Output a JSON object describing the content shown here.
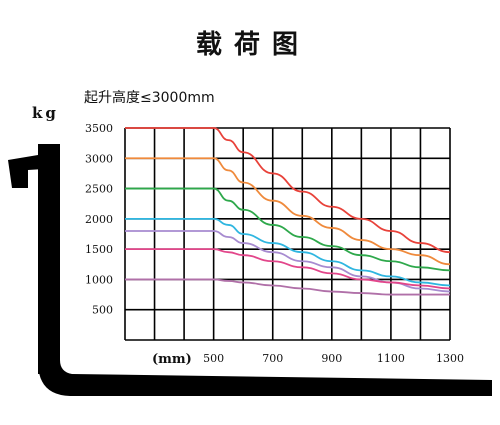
{
  "header": {
    "title": "载荷图",
    "subtitle": "起升高度≤3000mm"
  },
  "chart_data": {
    "type": "line",
    "title": "载荷图",
    "subtitle": "起升高度≤3000mm",
    "ylabel": "kg",
    "xlabel": "(mm)",
    "x_ticks": [
      500,
      700,
      900,
      1100,
      1300
    ],
    "y_ticks": [
      500,
      1000,
      1500,
      2000,
      2500,
      3000,
      3500
    ],
    "xlim": [
      200,
      1300
    ],
    "ylim": [
      0,
      3500
    ],
    "grid": true,
    "series": [
      {
        "color": "#e8423a",
        "x": [
          200,
          500,
          550,
          600,
          700,
          800,
          900,
          1000,
          1100,
          1200,
          1300
        ],
        "y": [
          3500,
          3500,
          3300,
          3100,
          2750,
          2450,
          2200,
          2000,
          1800,
          1600,
          1450
        ]
      },
      {
        "color": "#ef8a3c",
        "x": [
          200,
          500,
          550,
          600,
          700,
          800,
          900,
          1000,
          1100,
          1200,
          1300
        ],
        "y": [
          3000,
          3000,
          2800,
          2600,
          2300,
          2050,
          1850,
          1650,
          1500,
          1400,
          1250
        ]
      },
      {
        "color": "#2ea84b",
        "x": [
          200,
          500,
          550,
          600,
          700,
          800,
          900,
          1000,
          1100,
          1200,
          1300
        ],
        "y": [
          2500,
          2500,
          2300,
          2150,
          1900,
          1700,
          1550,
          1400,
          1300,
          1200,
          1150
        ]
      },
      {
        "color": "#2fb6e0",
        "x": [
          200,
          500,
          550,
          600,
          700,
          800,
          900,
          1000,
          1100,
          1200,
          1300
        ],
        "y": [
          2000,
          2000,
          1900,
          1750,
          1600,
          1450,
          1300,
          1150,
          1050,
          950,
          900
        ]
      },
      {
        "color": "#a78bd0",
        "x": [
          200,
          500,
          550,
          600,
          700,
          800,
          900,
          1000,
          1100,
          1200,
          1300
        ],
        "y": [
          1800,
          1800,
          1700,
          1600,
          1450,
          1300,
          1200,
          1050,
          950,
          850,
          800
        ]
      },
      {
        "color": "#e2468a",
        "x": [
          200,
          500,
          550,
          600,
          700,
          800,
          900,
          1000,
          1100,
          1200,
          1300
        ],
        "y": [
          1500,
          1500,
          1450,
          1400,
          1300,
          1200,
          1100,
          1000,
          950,
          900,
          850
        ]
      },
      {
        "color": "#b070a8",
        "x": [
          200,
          500,
          550,
          600,
          700,
          800,
          900,
          1000,
          1100,
          1200,
          1300
        ],
        "y": [
          1000,
          1000,
          975,
          950,
          900,
          850,
          800,
          775,
          750,
          750,
          750
        ]
      }
    ]
  }
}
